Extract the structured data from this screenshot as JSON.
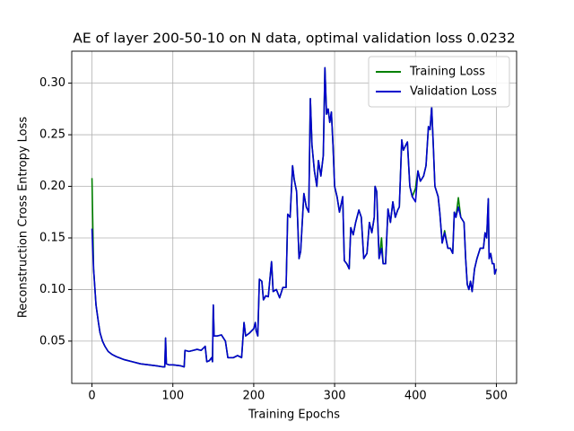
{
  "chart_data": {
    "type": "line",
    "title": "AE of layer 200-50-10 on N data, optimal validation loss 0.0232",
    "x_label": "Training Epochs",
    "y_label": "Reconstruction Cross Entropy Loss",
    "x": [
      0,
      2,
      5,
      8,
      10,
      13,
      16,
      20,
      25,
      30,
      40,
      50,
      60,
      70,
      80,
      88,
      90,
      91,
      92,
      95,
      100,
      110,
      114,
      115,
      120,
      125,
      130,
      135,
      140,
      142,
      145,
      148,
      149,
      150,
      151,
      155,
      160,
      165,
      168,
      175,
      180,
      185,
      188,
      190,
      195,
      200,
      202,
      203,
      205,
      207,
      210,
      212,
      215,
      218,
      222,
      224,
      228,
      232,
      236,
      240,
      242,
      245,
      248,
      250,
      253,
      256,
      258,
      262,
      265,
      268,
      270,
      272,
      275,
      278,
      280,
      283,
      286,
      288,
      290,
      292,
      294,
      296,
      298,
      300,
      303,
      306,
      310,
      312,
      315,
      318,
      320,
      323,
      326,
      330,
      333,
      336,
      340,
      343,
      346,
      349,
      350,
      352,
      355,
      358,
      360,
      363,
      366,
      369,
      372,
      375,
      378,
      380,
      383,
      385,
      388,
      390,
      393,
      396,
      400,
      403,
      406,
      410,
      413,
      416,
      418,
      420,
      422,
      424,
      428,
      430,
      433,
      436,
      440,
      443,
      446,
      448,
      450,
      453,
      456,
      460,
      462,
      464,
      466,
      468,
      470,
      473,
      476,
      480,
      484,
      486,
      488,
      490,
      491,
      493,
      495,
      497,
      498,
      500
    ],
    "series": [
      {
        "name": "Training Loss",
        "color": "#008000",
        "values": [
          0.208,
          0.12,
          0.085,
          0.068,
          0.058,
          0.05,
          0.045,
          0.04,
          0.037,
          0.035,
          0.032,
          0.03,
          0.028,
          0.027,
          0.026,
          0.025,
          0.025,
          0.053,
          0.028,
          0.027,
          0.027,
          0.026,
          0.025,
          0.041,
          0.04,
          0.041,
          0.042,
          0.041,
          0.045,
          0.03,
          0.031,
          0.034,
          0.03,
          0.085,
          0.055,
          0.055,
          0.056,
          0.05,
          0.034,
          0.034,
          0.036,
          0.034,
          0.068,
          0.055,
          0.058,
          0.062,
          0.068,
          0.06,
          0.055,
          0.11,
          0.108,
          0.09,
          0.094,
          0.093,
          0.127,
          0.098,
          0.1,
          0.092,
          0.102,
          0.102,
          0.173,
          0.17,
          0.22,
          0.207,
          0.195,
          0.13,
          0.137,
          0.193,
          0.18,
          0.175,
          0.285,
          0.24,
          0.215,
          0.2,
          0.225,
          0.21,
          0.23,
          0.315,
          0.27,
          0.275,
          0.262,
          0.272,
          0.24,
          0.2,
          0.19,
          0.175,
          0.19,
          0.128,
          0.125,
          0.12,
          0.16,
          0.153,
          0.165,
          0.177,
          0.17,
          0.13,
          0.135,
          0.165,
          0.155,
          0.17,
          0.2,
          0.195,
          0.13,
          0.15,
          0.125,
          0.125,
          0.178,
          0.165,
          0.185,
          0.17,
          0.177,
          0.18,
          0.245,
          0.235,
          0.24,
          0.243,
          0.2,
          0.19,
          0.198,
          0.215,
          0.205,
          0.21,
          0.22,
          0.258,
          0.255,
          0.277,
          0.24,
          0.2,
          0.19,
          0.175,
          0.145,
          0.157,
          0.14,
          0.14,
          0.135,
          0.175,
          0.17,
          0.189,
          0.17,
          0.165,
          0.13,
          0.105,
          0.1,
          0.108,
          0.098,
          0.12,
          0.13,
          0.14,
          0.14,
          0.155,
          0.15,
          0.188,
          0.13,
          0.135,
          0.125,
          0.125,
          0.115,
          0.12
        ]
      },
      {
        "name": "Validation Loss",
        "color": "#0000cc",
        "values": [
          0.159,
          0.12,
          0.085,
          0.068,
          0.058,
          0.05,
          0.045,
          0.04,
          0.037,
          0.035,
          0.032,
          0.03,
          0.028,
          0.027,
          0.026,
          0.025,
          0.025,
          0.053,
          0.028,
          0.027,
          0.027,
          0.026,
          0.025,
          0.041,
          0.04,
          0.041,
          0.042,
          0.041,
          0.045,
          0.03,
          0.031,
          0.034,
          0.03,
          0.085,
          0.055,
          0.055,
          0.056,
          0.05,
          0.034,
          0.034,
          0.036,
          0.034,
          0.068,
          0.055,
          0.058,
          0.062,
          0.068,
          0.06,
          0.055,
          0.11,
          0.108,
          0.09,
          0.094,
          0.093,
          0.127,
          0.098,
          0.1,
          0.092,
          0.102,
          0.102,
          0.173,
          0.17,
          0.22,
          0.207,
          0.195,
          0.13,
          0.137,
          0.193,
          0.18,
          0.175,
          0.285,
          0.24,
          0.215,
          0.2,
          0.225,
          0.21,
          0.23,
          0.315,
          0.27,
          0.275,
          0.262,
          0.272,
          0.24,
          0.2,
          0.19,
          0.175,
          0.19,
          0.128,
          0.125,
          0.12,
          0.16,
          0.153,
          0.165,
          0.177,
          0.17,
          0.13,
          0.135,
          0.165,
          0.155,
          0.17,
          0.2,
          0.195,
          0.13,
          0.14,
          0.125,
          0.125,
          0.178,
          0.165,
          0.185,
          0.17,
          0.177,
          0.18,
          0.245,
          0.235,
          0.24,
          0.243,
          0.2,
          0.19,
          0.185,
          0.215,
          0.205,
          0.21,
          0.22,
          0.258,
          0.255,
          0.277,
          0.24,
          0.2,
          0.19,
          0.175,
          0.145,
          0.155,
          0.14,
          0.14,
          0.135,
          0.175,
          0.17,
          0.18,
          0.17,
          0.165,
          0.13,
          0.105,
          0.1,
          0.108,
          0.098,
          0.12,
          0.13,
          0.14,
          0.14,
          0.155,
          0.15,
          0.188,
          0.13,
          0.135,
          0.125,
          0.125,
          0.115,
          0.12
        ]
      }
    ],
    "xlim": [
      -25,
      525
    ],
    "xticks": [
      0,
      100,
      200,
      300,
      400,
      500
    ],
    "ylim": [
      0.009,
      0.331
    ],
    "yticks": [
      0.05,
      {
        "value": 0.1,
        "label": "0.10"
      },
      0.15,
      {
        "value": 0.2,
        "label": "0.20"
      },
      0.25,
      {
        "value": 0.3,
        "label": "0.30"
      }
    ],
    "grid": true,
    "legend": "upper right"
  }
}
